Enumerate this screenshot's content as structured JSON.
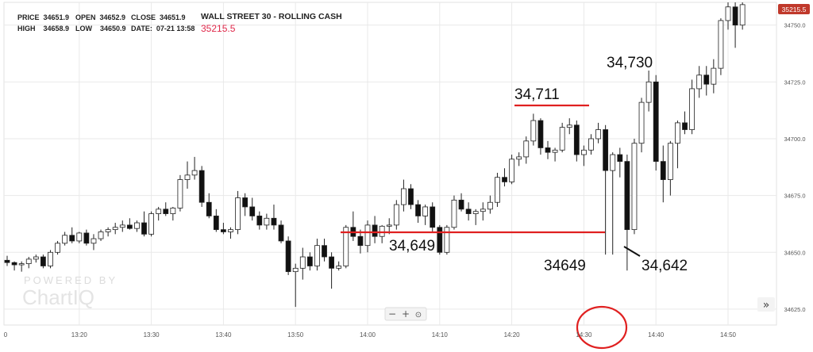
{
  "header": {
    "price_label": "PRICE",
    "price_value": "34651.9",
    "open_label": "OPEN",
    "open_value": "34652.9",
    "close_label": "CLOSE",
    "close_value": "34651.9",
    "high_label": "HIGH",
    "high_value": "34658.9",
    "low_label": "LOW",
    "low_value": "34650.9",
    "date_label": "DATE:",
    "date_value": "07-21 13:58",
    "instrument": "WALL STREET 30 - ROLLING CASH",
    "current_price": "35215.5"
  },
  "watermark": {
    "line1": "POWERED BY",
    "line2": "ChartIQ"
  },
  "zoom_controls": {
    "minus": "−",
    "plus": "+",
    "reset": "⊙"
  },
  "nav_arrow": "»",
  "price_tag": "35215.5",
  "colors": {
    "up": "#ffffff",
    "down": "#111111",
    "wick": "#222222",
    "annotation": "#e02020",
    "price_tag": "#c0392b",
    "grid": "#e9e9e9"
  },
  "chart_data": {
    "type": "candlestick",
    "xlabel": "",
    "ylabel": "",
    "x_ticks": [
      "0",
      "13:20",
      "13:30",
      "13:40",
      "13:50",
      "14:00",
      "14:10",
      "14:20",
      "14:30",
      "14:40",
      "14:50"
    ],
    "y_ticks": [
      "34625.0",
      "34650.0",
      "34675.0",
      "34700.0",
      "34725.0",
      "34750.0"
    ],
    "ylim": [
      34618,
      34760
    ],
    "grid": true,
    "bar_interval_minutes": 1,
    "start_time": "13:10",
    "annotations": [
      "34,711",
      "34,649",
      "34,730",
      "34649",
      "34,642"
    ],
    "candles": [
      [
        34646.5,
        34648.5,
        34644.0,
        34645.5
      ],
      [
        34645.5,
        34646.0,
        34642.0,
        34644.5
      ],
      [
        34644.5,
        34646.0,
        34641.5,
        34645.0
      ],
      [
        34645.0,
        34648.0,
        34643.0,
        34647.0
      ],
      [
        34647.0,
        34649.0,
        34645.5,
        34648.0
      ],
      [
        34648.0,
        34649.0,
        34643.0,
        34644.0
      ],
      [
        34644.0,
        34651.0,
        34643.0,
        34650.0
      ],
      [
        34650.0,
        34655.0,
        34649.0,
        34654.0
      ],
      [
        34654.0,
        34659.0,
        34653.0,
        34657.5
      ],
      [
        34657.5,
        34661.0,
        34654.0,
        34655.0
      ],
      [
        34655.0,
        34659.0,
        34654.0,
        34658.5
      ],
      [
        34658.5,
        34660.0,
        34653.0,
        34654.0
      ],
      [
        34654.0,
        34658.0,
        34651.0,
        34656.0
      ],
      [
        34656.0,
        34660.0,
        34655.0,
        34659.0
      ],
      [
        34659.0,
        34661.0,
        34657.0,
        34660.0
      ],
      [
        34660.0,
        34663.0,
        34658.0,
        34661.0
      ],
      [
        34661.0,
        34664.0,
        34659.0,
        34662.0
      ],
      [
        34662.0,
        34665.0,
        34660.0,
        34660.5
      ],
      [
        34660.5,
        34664.0,
        34659.0,
        34663.0
      ],
      [
        34663.0,
        34668.0,
        34657.0,
        34658.0
      ],
      [
        34658.0,
        34668.0,
        34657.0,
        34667.0
      ],
      [
        34667.0,
        34670.0,
        34664.0,
        34669.0
      ],
      [
        34669.0,
        34672.0,
        34666.0,
        34667.0
      ],
      [
        34667.0,
        34670.0,
        34664.0,
        34669.5
      ],
      [
        34669.5,
        34684.0,
        34668.0,
        34682.0
      ],
      [
        34682.0,
        34690.0,
        34678.0,
        34684.0
      ],
      [
        34684.0,
        34692.0,
        34682.0,
        34686.0
      ],
      [
        34686.0,
        34688.0,
        34670.0,
        34672.0
      ],
      [
        34672.0,
        34676.0,
        34665.0,
        34666.0
      ],
      [
        34666.0,
        34669.0,
        34659.0,
        34660.0
      ],
      [
        34660.0,
        34663.0,
        34658.0,
        34659.0
      ],
      [
        34659.0,
        34661.0,
        34656.0,
        34660.0
      ],
      [
        34660.0,
        34677.0,
        34658.0,
        34674.0
      ],
      [
        34674.0,
        34676.0,
        34666.0,
        34670.0
      ],
      [
        34670.0,
        34674.0,
        34664.0,
        34666.0
      ],
      [
        34666.0,
        34668.0,
        34660.0,
        34662.0
      ],
      [
        34662.0,
        34667.0,
        34660.0,
        34665.0
      ],
      [
        34665.0,
        34671.0,
        34660.0,
        34662.0
      ],
      [
        34662.0,
        34664.0,
        34654.0,
        34655.0
      ],
      [
        34655.0,
        34657.0,
        34640.0,
        34641.5
      ],
      [
        34641.5,
        34645.0,
        34626.0,
        34643.0
      ],
      [
        34643.0,
        34652.0,
        34638.0,
        34648.0
      ],
      [
        34648.0,
        34650.0,
        34642.0,
        34644.0
      ],
      [
        34644.0,
        34656.0,
        34642.0,
        34653.0
      ],
      [
        34653.0,
        34656.0,
        34646.0,
        34648.0
      ],
      [
        34648.0,
        34650.0,
        34634.0,
        34643.0
      ],
      [
        34643.0,
        34646.0,
        34642.0,
        34644.0
      ],
      [
        34644.0,
        34662.0,
        34643.0,
        34661.0
      ],
      [
        34661.0,
        34668.0,
        34655.0,
        34657.0
      ],
      [
        34657.0,
        34660.0,
        34649.5,
        34653.0
      ],
      [
        34653.0,
        34664.0,
        34650.0,
        34662.0
      ],
      [
        34662.0,
        34666.0,
        34654.0,
        34657.0
      ],
      [
        34657.0,
        34662.0,
        34654.0,
        34661.5
      ],
      [
        34661.5,
        34665.0,
        34658.0,
        34662.0
      ],
      [
        34662.0,
        34673.0,
        34660.0,
        34671.0
      ],
      [
        34671.0,
        34682.0,
        34668.0,
        34678.0
      ],
      [
        34678.0,
        34680.0,
        34669.0,
        34671.0
      ],
      [
        34671.0,
        34673.0,
        34663.0,
        34666.0
      ],
      [
        34666.0,
        34671.0,
        34662.0,
        34670.0
      ],
      [
        34670.0,
        34672.0,
        34659.0,
        34661.0
      ],
      [
        34661.0,
        34662.0,
        34649.0,
        34650.0
      ],
      [
        34650.0,
        34662.0,
        34649.0,
        34661.0
      ],
      [
        34661.0,
        34675.0,
        34660.0,
        34673.0
      ],
      [
        34673.0,
        34676.0,
        34668.0,
        34669.0
      ],
      [
        34669.0,
        34672.0,
        34664.0,
        34667.0
      ],
      [
        34667.0,
        34669.0,
        34662.0,
        34668.0
      ],
      [
        34668.0,
        34672.0,
        34664.0,
        34669.0
      ],
      [
        34669.0,
        34675.0,
        34667.0,
        34672.0
      ],
      [
        34672.0,
        34685.0,
        34670.0,
        34683.0
      ],
      [
        34683.0,
        34687.0,
        34679.0,
        34681.0
      ],
      [
        34681.0,
        34693.0,
        34680.0,
        34691.0
      ],
      [
        34691.0,
        34694.0,
        34688.0,
        34692.0
      ],
      [
        34692.0,
        34701.0,
        34689.0,
        34699.0
      ],
      [
        34699.0,
        34711.0,
        34697.0,
        34708.0
      ],
      [
        34708.0,
        34709.0,
        34693.0,
        34696.0
      ],
      [
        34696.0,
        34699.0,
        34691.0,
        34694.0
      ],
      [
        34694.0,
        34696.0,
        34690.0,
        34695.0
      ],
      [
        34695.0,
        34707.0,
        34694.0,
        34705.0
      ],
      [
        34705.0,
        34709.0,
        34702.0,
        34706.0
      ],
      [
        34706.0,
        34708.0,
        34690.0,
        34693.0
      ],
      [
        34693.0,
        34697.0,
        34688.0,
        34695.0
      ],
      [
        34695.0,
        34702.0,
        34693.0,
        34700.0
      ],
      [
        34700.0,
        34707.0,
        34698.0,
        34704.0
      ],
      [
        34704.0,
        34706.0,
        34649.0,
        34686.0
      ],
      [
        34686.0,
        34694.0,
        34649.0,
        34693.0
      ],
      [
        34693.0,
        34696.0,
        34683.0,
        34690.0
      ],
      [
        34690.0,
        34693.0,
        34642.0,
        34660.0
      ],
      [
        34660.0,
        34700.0,
        34658.0,
        34698.0
      ],
      [
        34698.0,
        34718.0,
        34694.0,
        34716.0
      ],
      [
        34716.0,
        34730.0,
        34712.0,
        34725.0
      ],
      [
        34725.0,
        34728.0,
        34686.0,
        34690.0
      ],
      [
        34690.0,
        34697.0,
        34672.0,
        34682.0
      ],
      [
        34682.0,
        34699.0,
        34675.0,
        34698.0
      ],
      [
        34698.0,
        34708.0,
        34687.0,
        34707.0
      ],
      [
        34707.0,
        34712.0,
        34702.0,
        34704.0
      ],
      [
        34704.0,
        34726.0,
        34702.0,
        34722.0
      ],
      [
        34722.0,
        34732.0,
        34718.0,
        34728.0
      ],
      [
        34728.0,
        34732.0,
        34719.0,
        34724.0
      ],
      [
        34724.0,
        34735.0,
        34720.0,
        34731.0
      ],
      [
        34731.0,
        34753.0,
        34728.0,
        34752.0
      ],
      [
        34752.0,
        34760.0,
        34748.0,
        34758.0
      ],
      [
        34758.0,
        34760.0,
        34740.0,
        34750.0
      ],
      [
        34750.0,
        34760.0,
        34748.0,
        34759.0
      ]
    ]
  }
}
